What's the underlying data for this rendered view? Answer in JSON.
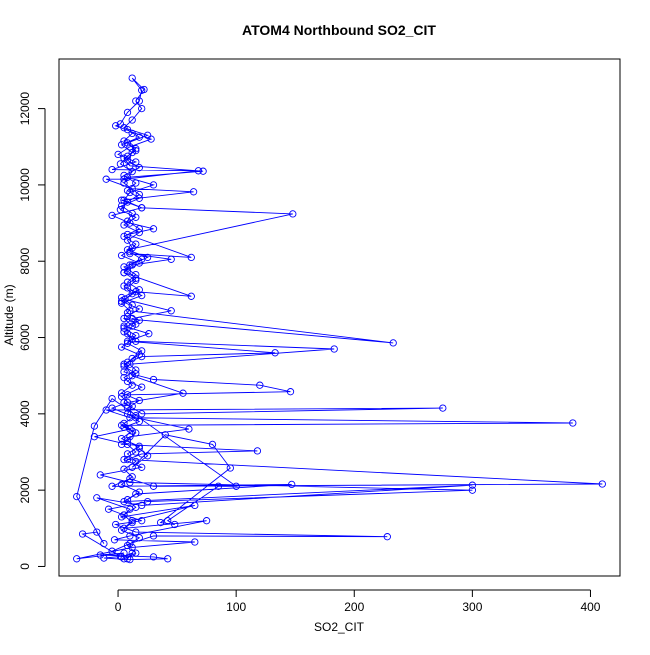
{
  "chart_data": {
    "type": "line",
    "title": "ATOM4 Northbound SO2_CIT",
    "xlabel": "SO2_CIT",
    "ylabel": "Altitude (m)",
    "xlim": [
      -50,
      425
    ],
    "ylim": [
      -250,
      13300
    ],
    "x_ticks": [
      0,
      100,
      200,
      300,
      400
    ],
    "y_ticks": [
      0,
      2000,
      4000,
      6000,
      8000,
      10000,
      12000
    ],
    "x_tick_labels": [
      "0",
      "100",
      "200",
      "300",
      "400"
    ],
    "y_tick_labels": [
      "0",
      "2000",
      "4000",
      "6000",
      "8000",
      "10000",
      "12000"
    ],
    "grid": false,
    "legend": "none",
    "marker": "open-circle",
    "series": [
      {
        "color": "#0000ff",
        "points": [
          [
            8,
            200
          ],
          [
            12,
            350
          ],
          [
            3,
            250
          ],
          [
            -5,
            400
          ],
          [
            10,
            600
          ],
          [
            30,
            800
          ],
          [
            228,
            780
          ],
          [
            15,
            900
          ],
          [
            -2,
            1100
          ],
          [
            20,
            1200
          ],
          [
            5,
            1350
          ],
          [
            -8,
            1500
          ],
          [
            25,
            1700
          ],
          [
            300,
            2000
          ],
          [
            10,
            2200
          ],
          [
            -15,
            2400
          ],
          [
            20,
            2600
          ],
          [
            5,
            2800
          ],
          [
            15,
            3000
          ],
          [
            8,
            3200
          ],
          [
            -20,
            3400
          ],
          [
            10,
            3600
          ],
          [
            3,
            3700
          ],
          [
            385,
            3760
          ],
          [
            10,
            3900
          ],
          [
            -10,
            4100
          ],
          [
            275,
            4150
          ],
          [
            20,
            4000
          ],
          [
            5,
            4300
          ],
          [
            8,
            4500
          ],
          [
            146,
            4580
          ],
          [
            120,
            4750
          ],
          [
            30,
            4900
          ],
          [
            5,
            5100
          ],
          [
            10,
            5300
          ],
          [
            183,
            5700
          ],
          [
            15,
            5900
          ],
          [
            8,
            6100
          ],
          [
            12,
            6300
          ],
          [
            5,
            6500
          ],
          [
            233,
            5860
          ],
          [
            10,
            6700
          ],
          [
            3,
            6900
          ],
          [
            20,
            7100
          ],
          [
            8,
            7300
          ],
          [
            15,
            7500
          ],
          [
            5,
            7700
          ],
          [
            10,
            7900
          ],
          [
            25,
            8100
          ],
          [
            8,
            8300
          ],
          [
            148,
            9240
          ],
          [
            20,
            9400
          ],
          [
            5,
            9600
          ],
          [
            10,
            9800
          ],
          [
            30,
            10000
          ],
          [
            8,
            10200
          ],
          [
            72,
            10360
          ],
          [
            10,
            10500
          ],
          [
            5,
            10700
          ],
          [
            15,
            10900
          ],
          [
            8,
            11100
          ],
          [
            25,
            11300
          ],
          [
            5,
            11500
          ],
          [
            12,
            11700
          ],
          [
            20,
            12000
          ],
          [
            15,
            12200
          ],
          [
            22,
            12500
          ],
          [
            12,
            12800
          ],
          [
            20,
            12480
          ],
          [
            18,
            12200
          ],
          [
            8,
            11900
          ],
          [
            2,
            11600
          ],
          [
            -2,
            11550
          ],
          [
            28,
            11200
          ],
          [
            10,
            11000
          ],
          [
            0,
            10800
          ],
          [
            15,
            10600
          ],
          [
            -5,
            10400
          ],
          [
            68,
            10370
          ],
          [
            5,
            10150
          ],
          [
            -10,
            10150
          ],
          [
            12,
            9900
          ],
          [
            64,
            9820
          ],
          [
            3,
            9600
          ],
          [
            20,
            9400
          ],
          [
            -5,
            9200
          ],
          [
            10,
            9000
          ],
          [
            30,
            8850
          ],
          [
            8,
            8700
          ],
          [
            62,
            8100
          ],
          [
            10,
            8200
          ],
          [
            45,
            8050
          ],
          [
            12,
            7900
          ],
          [
            5,
            7700
          ],
          [
            62,
            7080
          ],
          [
            15,
            7200
          ],
          [
            6,
            7000
          ],
          [
            45,
            6700
          ],
          [
            12,
            6500
          ],
          [
            5,
            6300
          ],
          [
            26,
            6100
          ],
          [
            8,
            5900
          ],
          [
            133,
            5600
          ],
          [
            20,
            5500
          ],
          [
            5,
            5300
          ],
          [
            12,
            5000
          ],
          [
            55,
            4540
          ],
          [
            8,
            4300
          ],
          [
            -5,
            4150
          ],
          [
            15,
            3900
          ],
          [
            60,
            3600
          ],
          [
            10,
            3400
          ],
          [
            3,
            3200
          ],
          [
            118,
            3030
          ],
          [
            20,
            2950
          ],
          [
            8,
            2800
          ],
          [
            410,
            2160
          ],
          [
            30,
            2100
          ],
          [
            10,
            2300
          ],
          [
            -5,
            2100
          ],
          [
            147,
            2150
          ],
          [
            15,
            1900
          ],
          [
            5,
            1700
          ],
          [
            300,
            2130
          ],
          [
            20,
            1600
          ],
          [
            -18,
            1800
          ],
          [
            10,
            1500
          ],
          [
            3,
            1300
          ],
          [
            65,
            1600
          ],
          [
            12,
            1200
          ],
          [
            5,
            1000
          ],
          [
            75,
            1200
          ],
          [
            10,
            800
          ],
          [
            -3,
            700
          ],
          [
            65,
            640
          ],
          [
            12,
            500
          ],
          [
            -35,
            200
          ],
          [
            5,
            350
          ],
          [
            -15,
            300
          ],
          [
            30,
            250
          ],
          [
            42,
            200
          ],
          [
            10,
            180
          ],
          [
            -12,
            220
          ],
          [
            2,
            260
          ],
          [
            -30,
            850
          ],
          [
            -18,
            900
          ],
          [
            -12,
            600
          ],
          [
            -35,
            1830
          ],
          [
            -20,
            3680
          ],
          [
            -5,
            4400
          ],
          [
            100,
            2100
          ],
          [
            85,
            2100
          ],
          [
            42,
            1200
          ],
          [
            48,
            1100
          ],
          [
            36,
            1150
          ],
          [
            95,
            2580
          ],
          [
            80,
            3200
          ],
          [
            40,
            3450
          ],
          [
            12,
            2600
          ],
          [
            25,
            2900
          ],
          [
            18,
            3100
          ],
          [
            8,
            3300
          ],
          [
            15,
            3500
          ],
          [
            5,
            3650
          ],
          [
            18,
            3800
          ],
          [
            8,
            4000
          ],
          [
            12,
            4200
          ],
          [
            3,
            4450
          ],
          [
            20,
            4700
          ],
          [
            8,
            4850
          ],
          [
            15,
            5050
          ],
          [
            5,
            5250
          ],
          [
            12,
            5450
          ],
          [
            20,
            5650
          ],
          [
            8,
            5850
          ],
          [
            15,
            6050
          ],
          [
            5,
            6250
          ],
          [
            18,
            6450
          ],
          [
            8,
            6650
          ],
          [
            12,
            6850
          ],
          [
            3,
            7050
          ],
          [
            18,
            7250
          ],
          [
            8,
            7450
          ],
          [
            15,
            7650
          ],
          [
            5,
            7850
          ],
          [
            20,
            8050
          ],
          [
            10,
            8250
          ],
          [
            15,
            8450
          ],
          [
            5,
            8650
          ],
          [
            18,
            8850
          ],
          [
            8,
            9050
          ],
          [
            12,
            9250
          ],
          [
            3,
            9450
          ],
          [
            18,
            9650
          ],
          [
            8,
            9850
          ],
          [
            15,
            10050
          ],
          [
            5,
            10250
          ],
          [
            18,
            10450
          ],
          [
            8,
            10650
          ],
          [
            12,
            10850
          ],
          [
            3,
            11050
          ],
          [
            18,
            11250
          ],
          [
            8,
            11450
          ],
          [
            12,
            11350
          ],
          [
            5,
            11150
          ],
          [
            15,
            10950
          ],
          [
            8,
            10750
          ],
          [
            2,
            10550
          ],
          [
            12,
            10350
          ],
          [
            5,
            10050
          ],
          [
            18,
            9750
          ],
          [
            8,
            9550
          ],
          [
            2,
            9350
          ],
          [
            15,
            9150
          ],
          [
            5,
            8950
          ],
          [
            18,
            8750
          ],
          [
            8,
            8550
          ],
          [
            12,
            8350
          ],
          [
            3,
            8150
          ],
          [
            18,
            7950
          ],
          [
            8,
            7750
          ],
          [
            15,
            7550
          ],
          [
            5,
            7350
          ],
          [
            12,
            7150
          ],
          [
            3,
            6950
          ],
          [
            18,
            6750
          ],
          [
            8,
            6550
          ],
          [
            15,
            6350
          ],
          [
            5,
            6150
          ],
          [
            12,
            5950
          ],
          [
            3,
            5750
          ],
          [
            18,
            5550
          ],
          [
            8,
            5350
          ],
          [
            15,
            5150
          ],
          [
            5,
            4950
          ],
          [
            12,
            4750
          ],
          [
            3,
            4550
          ],
          [
            18,
            4350
          ],
          [
            8,
            4150
          ],
          [
            15,
            3950
          ],
          [
            5,
            3750
          ],
          [
            12,
            3550
          ],
          [
            3,
            3350
          ],
          [
            18,
            3150
          ],
          [
            8,
            2950
          ],
          [
            15,
            2750
          ],
          [
            5,
            2550
          ],
          [
            12,
            2350
          ],
          [
            3,
            2150
          ],
          [
            18,
            1950
          ],
          [
            8,
            1750
          ],
          [
            15,
            1550
          ],
          [
            5,
            1350
          ],
          [
            12,
            1150
          ],
          [
            3,
            950
          ],
          [
            18,
            750
          ],
          [
            8,
            550
          ],
          [
            15,
            350
          ],
          [
            5,
            200
          ]
        ]
      }
    ]
  }
}
